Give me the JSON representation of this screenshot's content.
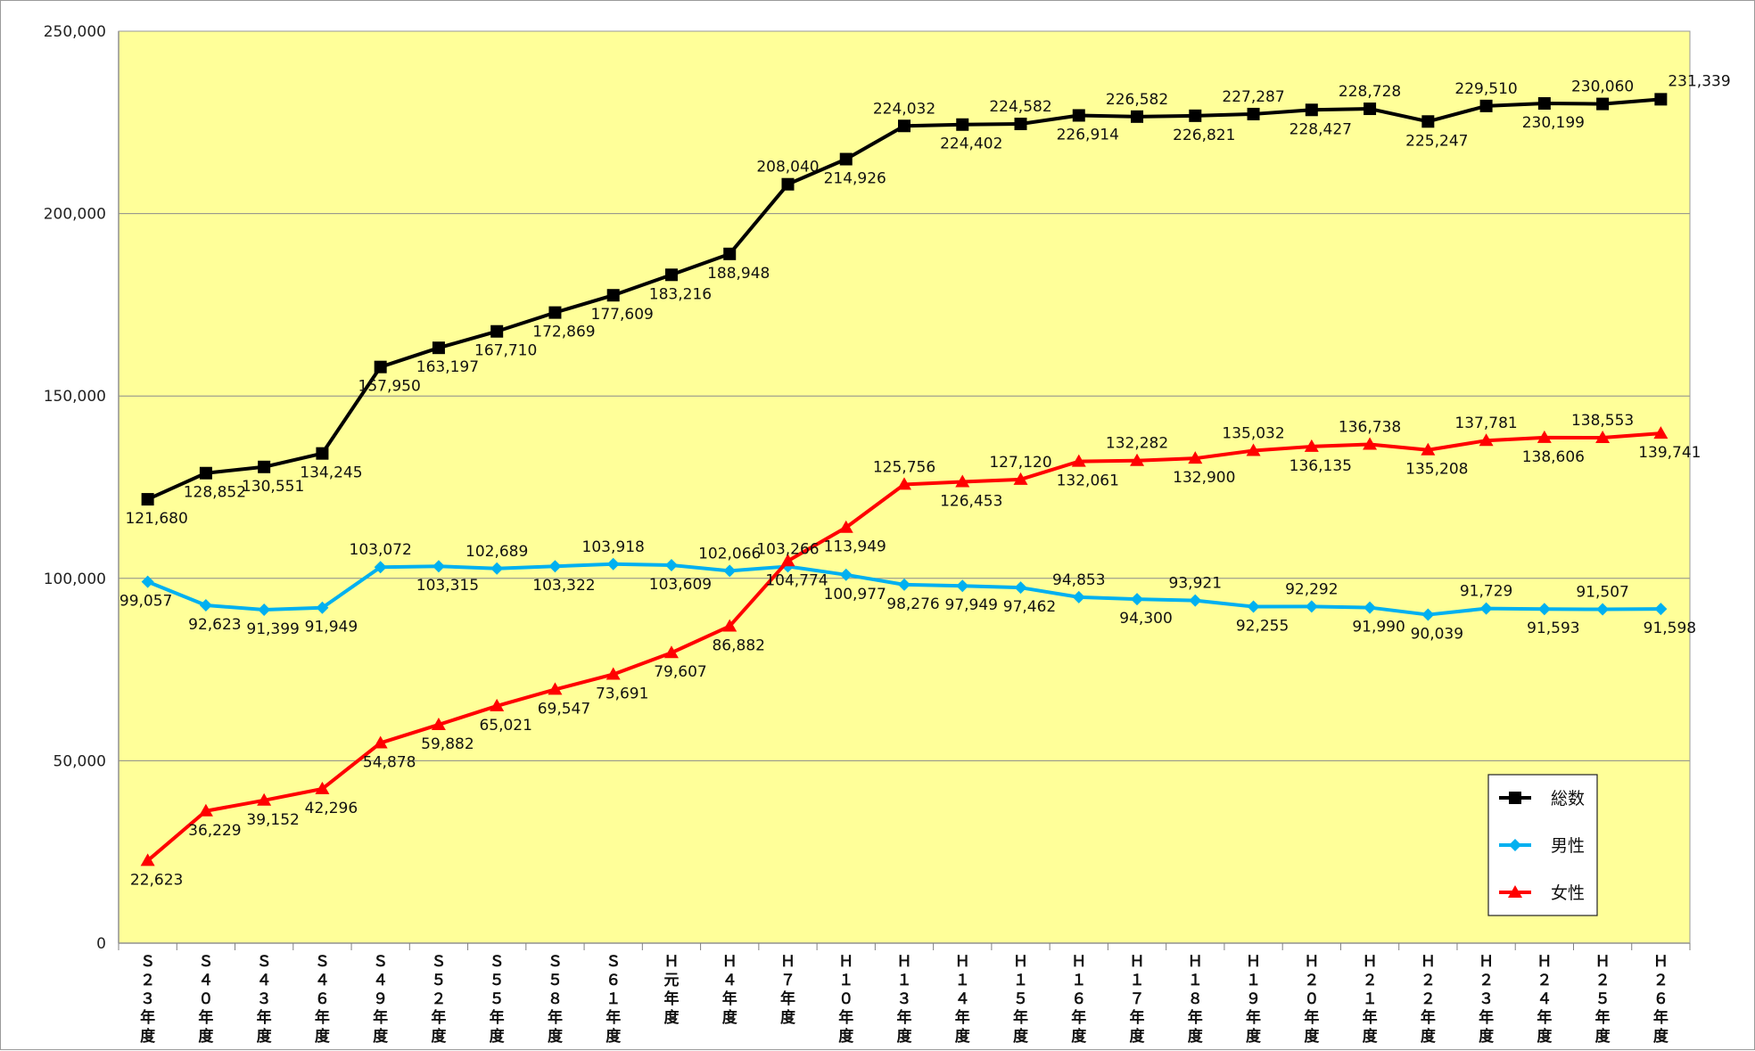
{
  "chart_data": {
    "type": "line",
    "categories": [
      "S23年度",
      "S40年度",
      "S43年度",
      "S46年度",
      "S49年度",
      "S52年度",
      "S55年度",
      "S58年度",
      "S61年度",
      "H元年度",
      "H4年度",
      "H7年度",
      "H10年度",
      "H13年度",
      "H14年度",
      "H15年度",
      "H16年度",
      "H17年度",
      "H18年度",
      "H19年度",
      "H20年度",
      "H21年度",
      "H22年度",
      "H23年度",
      "H24年度",
      "H25年度",
      "H26年度"
    ],
    "category_glyphs": [
      [
        "Ｓ",
        "２",
        "３",
        "年",
        "度"
      ],
      [
        "Ｓ",
        "４",
        "０",
        "年",
        "度"
      ],
      [
        "Ｓ",
        "４",
        "３",
        "年",
        "度"
      ],
      [
        "Ｓ",
        "４",
        "６",
        "年",
        "度"
      ],
      [
        "Ｓ",
        "４",
        "９",
        "年",
        "度"
      ],
      [
        "Ｓ",
        "５",
        "２",
        "年",
        "度"
      ],
      [
        "Ｓ",
        "５",
        "５",
        "年",
        "度"
      ],
      [
        "Ｓ",
        "５",
        "８",
        "年",
        "度"
      ],
      [
        "Ｓ",
        "６",
        "１",
        "年",
        "度"
      ],
      [
        "Ｈ",
        "元",
        "年",
        "度"
      ],
      [
        "Ｈ",
        "４",
        "年",
        "度"
      ],
      [
        "Ｈ",
        "７",
        "年",
        "度"
      ],
      [
        "Ｈ",
        "１",
        "０",
        "年",
        "度"
      ],
      [
        "Ｈ",
        "１",
        "３",
        "年",
        "度"
      ],
      [
        "Ｈ",
        "１",
        "４",
        "年",
        "度"
      ],
      [
        "Ｈ",
        "１",
        "５",
        "年",
        "度"
      ],
      [
        "Ｈ",
        "１",
        "６",
        "年",
        "度"
      ],
      [
        "Ｈ",
        "１",
        "７",
        "年",
        "度"
      ],
      [
        "Ｈ",
        "１",
        "８",
        "年",
        "度"
      ],
      [
        "Ｈ",
        "１",
        "９",
        "年",
        "度"
      ],
      [
        "Ｈ",
        "２",
        "０",
        "年",
        "度"
      ],
      [
        "Ｈ",
        "２",
        "１",
        "年",
        "度"
      ],
      [
        "Ｈ",
        "２",
        "２",
        "年",
        "度"
      ],
      [
        "Ｈ",
        "２",
        "３",
        "年",
        "度"
      ],
      [
        "Ｈ",
        "２",
        "４",
        "年",
        "度"
      ],
      [
        "Ｈ",
        "２",
        "５",
        "年",
        "度"
      ],
      [
        "Ｈ",
        "２",
        "６",
        "年",
        "度"
      ]
    ],
    "series": [
      {
        "name": "総数",
        "color": "#000000",
        "marker": "square",
        "values": [
          121680,
          128852,
          130551,
          134245,
          157950,
          163197,
          167710,
          172869,
          177609,
          183216,
          188948,
          208040,
          214926,
          224032,
          224402,
          224582,
          226914,
          226582,
          226821,
          227287,
          228427,
          228728,
          225247,
          229510,
          230199,
          230060,
          231339
        ],
        "labels": [
          "121,680",
          "128,852",
          "130,551",
          "134,245",
          "157,950",
          "163,197",
          "167,710",
          "172,869",
          "177,609",
          "183,216",
          "188,948",
          "208,040",
          "214,926",
          "224,032",
          "224,402",
          "224,582",
          "226,914",
          "226,582",
          "226,821",
          "227,287",
          "228,427",
          "228,728",
          "225,247",
          "229,510",
          "230,199",
          "230,060",
          "231,339"
        ]
      },
      {
        "name": "男性",
        "color": "#00b0f0",
        "marker": "diamond",
        "values": [
          99057,
          92623,
          91399,
          91949,
          103072,
          103315,
          102689,
          103322,
          103918,
          103609,
          102066,
          103266,
          100977,
          98276,
          97949,
          97462,
          94853,
          94300,
          93921,
          92255,
          92292,
          91990,
          90039,
          91729,
          91593,
          91507,
          91598
        ],
        "labels": [
          "99,057",
          "92,623",
          "91,399",
          "91,949",
          "103,072",
          "103,315",
          "102,689",
          "103,322",
          "103,918",
          "103,609",
          "102,066",
          "103,266",
          "100,977",
          "98,276",
          "97,949",
          "97,462",
          "94,853",
          "94,300",
          "93,921",
          "92,255",
          "92,292",
          "91,990",
          "90,039",
          "91,729",
          "91,593",
          "91,507",
          "91,598"
        ]
      },
      {
        "name": "女性",
        "color": "#ff0000",
        "marker": "triangle",
        "values": [
          22623,
          36229,
          39152,
          42296,
          54878,
          59882,
          65021,
          69547,
          73691,
          79607,
          86882,
          104774,
          113949,
          125756,
          126453,
          127120,
          132061,
          132282,
          132900,
          135032,
          136135,
          136738,
          135208,
          137781,
          138606,
          138553,
          139741
        ],
        "labels": [
          "22,623",
          "36,229",
          "39,152",
          "42,296",
          "54,878",
          "59,882",
          "65,021",
          "69,547",
          "73,691",
          "79,607",
          "86,882",
          "104,774",
          "113,949",
          "125,756",
          "126,453",
          "127,120",
          "132,061",
          "132,282",
          "132,900",
          "135,032",
          "136,135",
          "136,738",
          "135,208",
          "137,781",
          "138,606",
          "138,553",
          "139,741"
        ]
      }
    ],
    "yticks": [
      "0",
      "50,000",
      "100,000",
      "150,000",
      "200,000",
      "250,000"
    ],
    "ylim": [
      0,
      250000
    ],
    "grid": true,
    "legend_position": "bottom-right",
    "plot_background": "#ffff99",
    "gridline_color": "#8c8c8c"
  }
}
